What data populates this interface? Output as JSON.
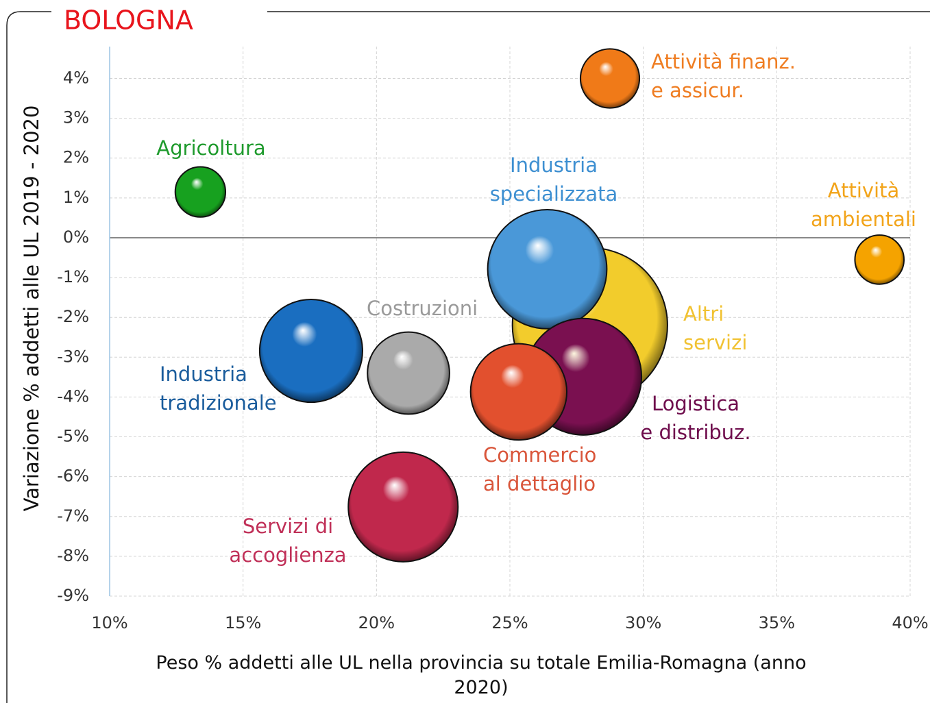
{
  "chart_data": {
    "type": "bubble",
    "title": "BOLOGNA",
    "xlabel": "Peso % addetti alle UL nella provincia su totale Emilia-Romagna (anno 2020)",
    "ylabel": "Variazione % addetti alle UL 2019 - 2020",
    "xlim": [
      10,
      40
    ],
    "ylim": [
      -9,
      4.8
    ],
    "xticks": [
      {
        "value": 10,
        "label": "10%"
      },
      {
        "value": 15,
        "label": "15%"
      },
      {
        "value": 20,
        "label": "20%"
      },
      {
        "value": 25,
        "label": "25%"
      },
      {
        "value": 30,
        "label": "30%"
      },
      {
        "value": 35,
        "label": "35%"
      },
      {
        "value": 40,
        "label": "40%"
      }
    ],
    "yticks": [
      {
        "value": 4,
        "label": "4%"
      },
      {
        "value": 3,
        "label": "3%"
      },
      {
        "value": 2,
        "label": "2%"
      },
      {
        "value": 1,
        "label": "1%"
      },
      {
        "value": 0,
        "label": "0%"
      },
      {
        "value": -1,
        "label": "-1%"
      },
      {
        "value": -2,
        "label": "-2%"
      },
      {
        "value": -3,
        "label": "-3%"
      },
      {
        "value": -4,
        "label": "-4%"
      },
      {
        "value": -5,
        "label": "-5%"
      },
      {
        "value": -6,
        "label": "-6%"
      },
      {
        "value": -7,
        "label": "-7%"
      },
      {
        "value": -8,
        "label": "-8%"
      },
      {
        "value": -9,
        "label": "-9%"
      }
    ],
    "grid": true,
    "series": [
      {
        "name": [
          "Agricoltura"
        ],
        "color": "#17a11f",
        "label_color": "#1e9a2c",
        "x": [
          13.4
        ],
        "values": [
          1.15
        ],
        "sizes": [
          21
        ]
      },
      {
        "name": [
          "Attività finanz.",
          "e assicur."
        ],
        "color": "#f07a18",
        "label_color": "#ef7d22",
        "x": [
          28.75
        ],
        "values": [
          4.0
        ],
        "sizes": [
          29
        ]
      },
      {
        "name": [
          "Altri",
          "servizi"
        ],
        "color": "#f2cc2c",
        "label_color": "#f1c232",
        "x": [
          28.0
        ],
        "values": [
          -2.2
        ],
        "sizes": [
          200
        ]
      },
      {
        "name": [
          "Industria",
          "specializzata"
        ],
        "color": "#4a98d8",
        "label_color": "#3d8fd1",
        "x": [
          26.4
        ],
        "values": [
          -0.79
        ],
        "sizes": [
          118
        ]
      },
      {
        "name": [
          "Attività",
          "ambientali"
        ],
        "color": "#f5a300",
        "label_color": "#f2a41a",
        "x": [
          38.85
        ],
        "values": [
          -0.55
        ],
        "sizes": [
          20
        ]
      },
      {
        "name": [
          "Logistica",
          "e distribuz."
        ],
        "color": "#7a1050",
        "label_color": "#6e0c4c",
        "x": [
          27.75
        ],
        "values": [
          -3.49
        ],
        "sizes": [
          113
        ]
      },
      {
        "name": [
          "Commercio",
          "al dettaglio"
        ],
        "color": "#e2502e",
        "label_color": "#d9553a",
        "x": [
          25.33
        ],
        "values": [
          -3.87
        ],
        "sizes": [
          77
        ]
      },
      {
        "name": [
          "Costruzioni"
        ],
        "color": "#aaaaaa",
        "label_color": "#9a9a9a",
        "x": [
          21.2
        ],
        "values": [
          -3.4
        ],
        "sizes": [
          56
        ]
      },
      {
        "name": [
          "Industria",
          "tradizionale"
        ],
        "color": "#1a6ec0",
        "label_color": "#1a5c9c",
        "x": [
          17.55
        ],
        "values": [
          -2.84
        ],
        "sizes": [
          88
        ]
      },
      {
        "name": [
          "Servizi di",
          "accoglienza"
        ],
        "color": "#c0284c",
        "label_color": "#c03058",
        "x": [
          21.0
        ],
        "values": [
          -6.76
        ],
        "sizes": [
          100
        ]
      }
    ]
  }
}
